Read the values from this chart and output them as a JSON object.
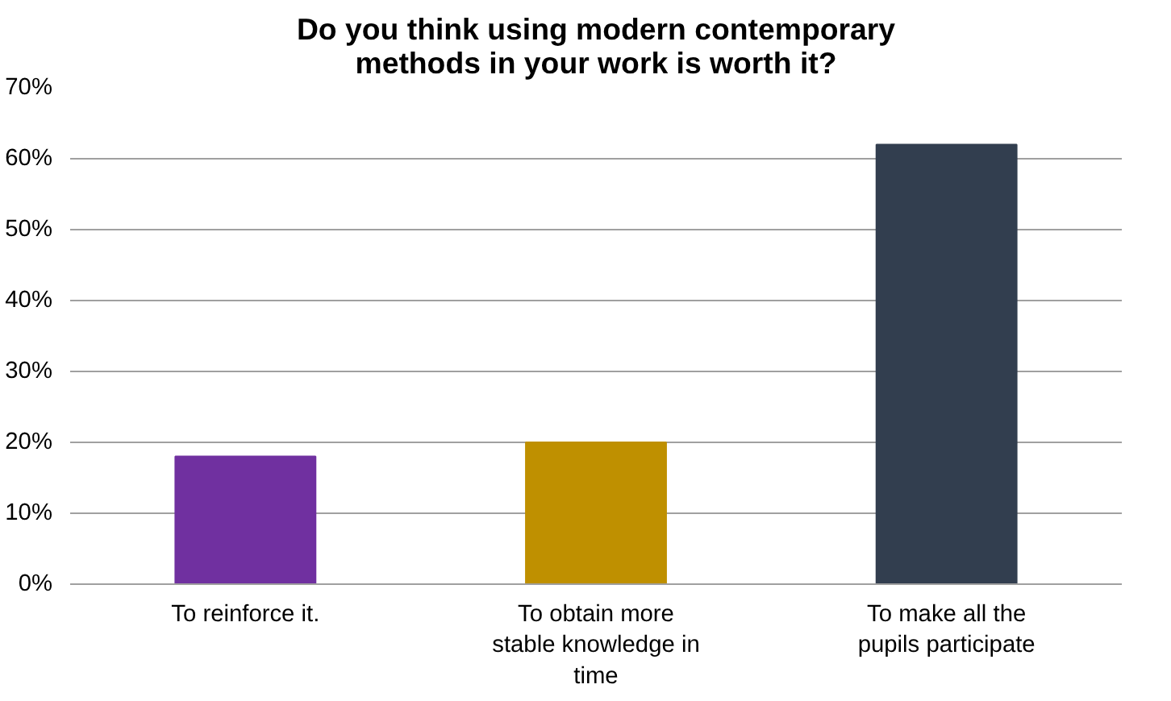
{
  "chart_data": {
    "type": "bar",
    "title": "Do you think using modern contemporary methods in your work is worth it?",
    "categories": [
      "To reinforce it.",
      "To obtain more stable knowledge in time",
      "To make all the pupils participate"
    ],
    "values": [
      18,
      20,
      62
    ],
    "colors": [
      "#7030a0",
      "#bf9000",
      "#323e4f"
    ],
    "ylim": [
      0,
      70
    ],
    "yticks": [
      {
        "value": 0,
        "label": "0%"
      },
      {
        "value": 10,
        "label": "10%"
      },
      {
        "value": 20,
        "label": "20%"
      },
      {
        "value": 30,
        "label": "30%"
      },
      {
        "value": 40,
        "label": "40%"
      },
      {
        "value": 50,
        "label": "50%"
      },
      {
        "value": 60,
        "label": "60%"
      },
      {
        "value": 70,
        "label": "70%"
      }
    ],
    "grid": "y"
  }
}
